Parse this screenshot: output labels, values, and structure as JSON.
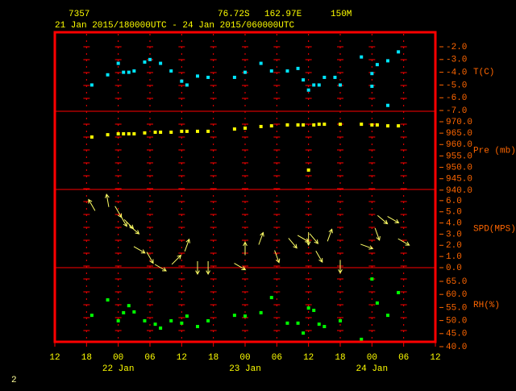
{
  "header": {
    "station": "7357",
    "lat": "76.72S",
    "lon": "162.97E",
    "elevation": "150M",
    "period": "21 Jan 2015/180000UTC - 24 Jan 2015/060000UTC",
    "page_number": "2"
  },
  "x_axis": {
    "xlim": [
      0,
      72
    ],
    "xticks": [
      {
        "value": 0,
        "label": "12"
      },
      {
        "value": 6,
        "label": "18"
      },
      {
        "value": 12,
        "label": "00"
      },
      {
        "value": 18,
        "label": "06"
      },
      {
        "value": 24,
        "label": "12"
      },
      {
        "value": 30,
        "label": "18"
      },
      {
        "value": 36,
        "label": "00"
      },
      {
        "value": 42,
        "label": "06"
      },
      {
        "value": 48,
        "label": "12"
      },
      {
        "value": 54,
        "label": "18"
      },
      {
        "value": 60,
        "label": "00"
      },
      {
        "value": 66,
        "label": "06"
      },
      {
        "value": 72,
        "label": "12"
      }
    ],
    "date_labels": [
      {
        "value": 12,
        "label": "22 Jan"
      },
      {
        "value": 36,
        "label": "23 Jan"
      },
      {
        "value": 60,
        "label": "24 Jan"
      }
    ]
  },
  "chart_data": [
    {
      "type": "scatter",
      "ylabel": "T(C)",
      "color": "#00e5ff",
      "ylim": [
        -7.06,
        -0.86
      ],
      "yticks": [
        {
          "value": -2,
          "label": "-2.0"
        },
        {
          "value": -3,
          "label": "-3.0"
        },
        {
          "value": -4,
          "label": "-4.0"
        },
        {
          "value": -5,
          "label": "-5.0"
        },
        {
          "value": -6,
          "label": "-6.0"
        },
        {
          "value": -7,
          "label": "-7.0"
        }
      ],
      "x": [
        7,
        10,
        12,
        13,
        14,
        15,
        17,
        18,
        20,
        22,
        24,
        25,
        27,
        29,
        34,
        36,
        39,
        41,
        44,
        46,
        47,
        48,
        49,
        50,
        51,
        53,
        54,
        58,
        60,
        60,
        61,
        63,
        63,
        65
      ],
      "values": [
        -5.0,
        -4.2,
        -3.3,
        -4.0,
        -4.0,
        -3.9,
        -3.2,
        -3.0,
        -3.3,
        -3.9,
        -4.7,
        -5.0,
        -4.3,
        -4.4,
        -4.4,
        -4.0,
        -3.3,
        -3.9,
        -3.9,
        -3.7,
        -4.6,
        -5.4,
        -5.0,
        -5.0,
        -4.4,
        -4.4,
        -5.0,
        -2.8,
        -4.1,
        -5.1,
        -3.4,
        -6.6,
        -3.1,
        -2.4
      ]
    },
    {
      "type": "scatter",
      "ylabel": "Pre (mb)",
      "color": "#ffff00",
      "ylim": [
        940.3,
        974.6
      ],
      "yticks": [
        {
          "value": 970,
          "label": "970.0"
        },
        {
          "value": 965,
          "label": "965.0"
        },
        {
          "value": 960,
          "label": "960.0"
        },
        {
          "value": 955,
          "label": "955.0"
        },
        {
          "value": 950,
          "label": "950.0"
        },
        {
          "value": 945,
          "label": "945.0"
        },
        {
          "value": 940,
          "label": "940.0"
        }
      ],
      "x": [
        7,
        10,
        12,
        13,
        14,
        15,
        17,
        19,
        20,
        22,
        24,
        25,
        27,
        29,
        34,
        36,
        39,
        41,
        44,
        46,
        47,
        48,
        49,
        50,
        51,
        54,
        58,
        60,
        61,
        63,
        65
      ],
      "values": [
        963.3,
        964.3,
        964.7,
        964.7,
        964.7,
        964.7,
        965.1,
        965.4,
        965.4,
        965.4,
        965.8,
        965.8,
        965.8,
        965.8,
        966.8,
        967.2,
        967.9,
        968.2,
        968.6,
        968.6,
        968.6,
        948.8,
        968.6,
        968.9,
        968.9,
        968.9,
        968.9,
        968.6,
        968.6,
        968.2,
        968.2
      ]
    },
    {
      "type": "vector",
      "ylabel": "SPD(MPS)",
      "color": "#ffff66",
      "ylim": [
        0,
        7
      ],
      "yticks": [
        {
          "value": 6,
          "label": "6.0"
        },
        {
          "value": 5,
          "label": "5.0"
        },
        {
          "value": 4,
          "label": "4.0"
        },
        {
          "value": 3,
          "label": "3.0"
        },
        {
          "value": 2,
          "label": "2.0"
        },
        {
          "value": 1,
          "label": "1.0"
        },
        {
          "value": 0,
          "label": "0.0"
        }
      ],
      "x": [
        7,
        10,
        12,
        13,
        14,
        15,
        16,
        18,
        20,
        23,
        25,
        27,
        29,
        35,
        36,
        39,
        42,
        45,
        47,
        48,
        49,
        50,
        52,
        54,
        59,
        61,
        62,
        64,
        66
      ],
      "values": [
        5.6,
        6.0,
        5.0,
        4.2,
        3.9,
        3.4,
        1.6,
        0.9,
        0.0,
        0.7,
        2.0,
        0.0,
        0.0,
        0.1,
        1.7,
        2.6,
        1.0,
        2.2,
        2.6,
        2.6,
        2.6,
        1.0,
        2.9,
        0.1,
        1.9,
        3.0,
        4.3,
        4.3,
        2.3
      ],
      "directions": [
        330,
        350,
        150,
        150,
        135,
        130,
        120,
        150,
        120,
        45,
        20,
        180,
        180,
        120,
        0,
        20,
        160,
        140,
        120,
        180,
        140,
        150,
        20,
        180,
        110,
        160,
        130,
        120,
        120
      ]
    },
    {
      "type": "scatter",
      "ylabel": "RH(%)",
      "color": "#00ff00",
      "ylim": [
        41.85,
        70.25
      ],
      "yticks": [
        {
          "value": 65,
          "label": "65.0"
        },
        {
          "value": 60,
          "label": "60.0"
        },
        {
          "value": 55,
          "label": "55.0"
        },
        {
          "value": 50,
          "label": "50.0"
        },
        {
          "value": 45,
          "label": "45.0"
        },
        {
          "value": 40,
          "label": "40.0"
        }
      ],
      "x": [
        7,
        10,
        12,
        13,
        14,
        15,
        17,
        19,
        20,
        22,
        24,
        25,
        27,
        29,
        34,
        36,
        39,
        41,
        44,
        46,
        47,
        48,
        49,
        50,
        51,
        54,
        58,
        60,
        61,
        63,
        65
      ],
      "values": [
        52.0,
        57.9,
        49.9,
        53.0,
        55.7,
        53.3,
        49.9,
        48.6,
        47.1,
        49.9,
        49.0,
        51.7,
        47.7,
        49.9,
        52.0,
        51.7,
        53.0,
        58.8,
        49.0,
        49.0,
        45.2,
        54.8,
        53.9,
        48.6,
        47.7,
        49.9,
        42.8,
        65.9,
        56.7,
        52.0,
        60.7
      ]
    }
  ]
}
